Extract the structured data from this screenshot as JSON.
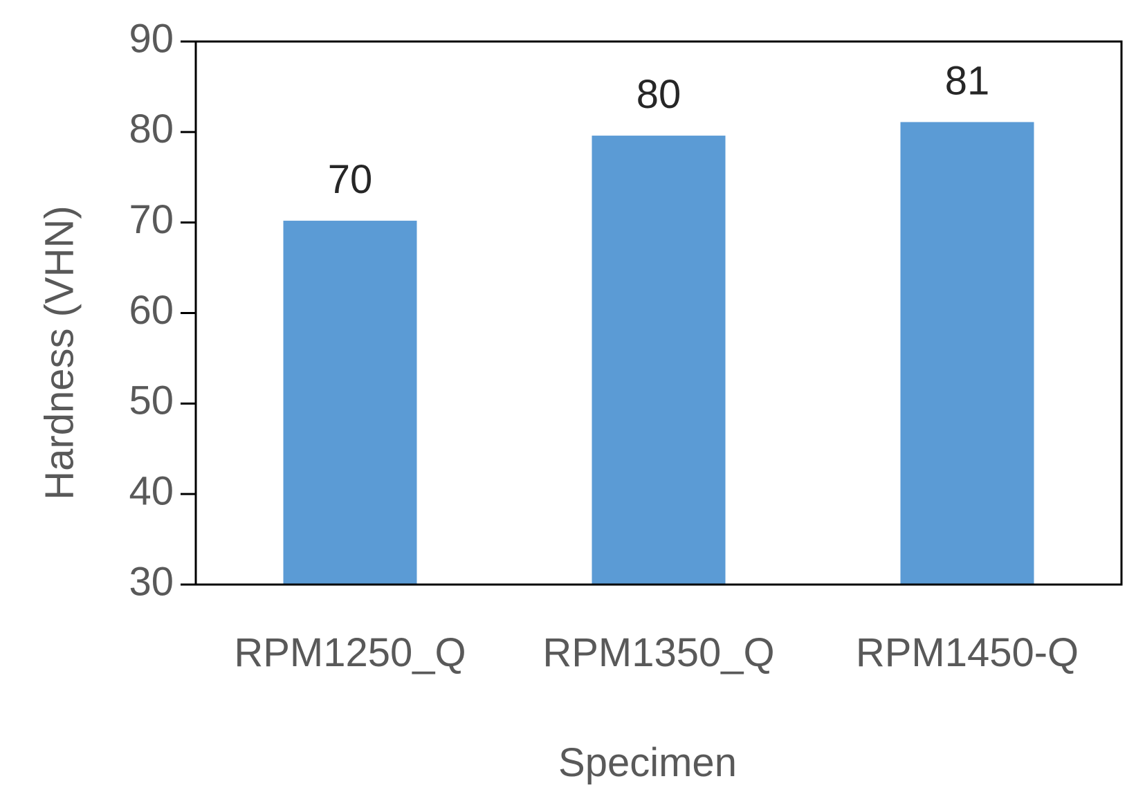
{
  "chart_data": {
    "type": "bar",
    "categories": [
      "RPM1250_Q",
      "RPM1350_Q",
      "RPM1450-Q"
    ],
    "values": [
      70.2,
      79.6,
      81.1
    ],
    "data_labels": [
      "70",
      "80",
      "81"
    ],
    "xlabel": "Specimen",
    "ylabel": "Hardness (VHN)",
    "ylim": [
      30,
      90
    ],
    "yticks": [
      "30",
      "40",
      "50",
      "60",
      "70",
      "80",
      "90"
    ],
    "grid": false,
    "legend": "none",
    "colors": {
      "bar": "#5B9BD5",
      "axis": "#000000",
      "text": "#595959",
      "data_label": "#262626"
    }
  }
}
